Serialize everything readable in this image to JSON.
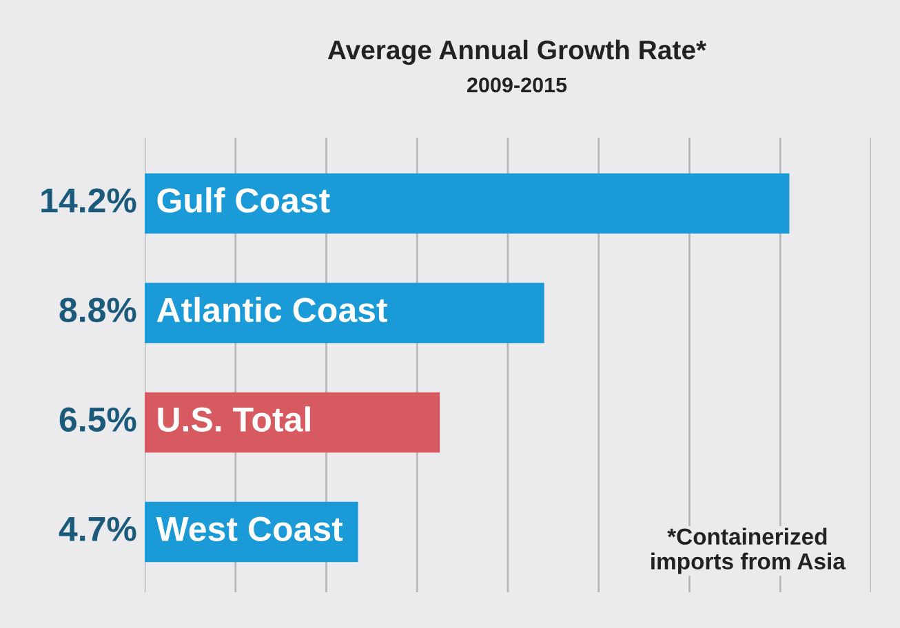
{
  "chart_data": {
    "type": "bar",
    "orientation": "horizontal",
    "title": "Average Annual Growth Rate*",
    "subtitle": "2009-2015",
    "categories": [
      "Gulf Coast",
      "Atlantic Coast",
      "U.S. Total",
      "West Coast"
    ],
    "values": [
      14.2,
      8.8,
      6.5,
      4.7
    ],
    "value_labels": [
      "14.2%",
      "8.8%",
      "6.5%",
      "4.7%"
    ],
    "colors": [
      "#1a9ad6",
      "#1a9ad6",
      "#d65a5f",
      "#1a9ad6"
    ],
    "xlim": [
      0,
      16
    ],
    "xticks": [
      {
        "value": 0,
        "label": null
      },
      {
        "value": 2,
        "label": null
      },
      {
        "value": 4,
        "label": null
      },
      {
        "value": 6,
        "label": null
      },
      {
        "value": 8,
        "label": null
      },
      {
        "value": 10,
        "label": null
      },
      {
        "value": 12,
        "label": null
      },
      {
        "value": 14,
        "label": null
      },
      {
        "value": 16,
        "label": null
      }
    ],
    "grid": "x",
    "annotations": [
      "*Containerized\nimports from Asia"
    ]
  }
}
